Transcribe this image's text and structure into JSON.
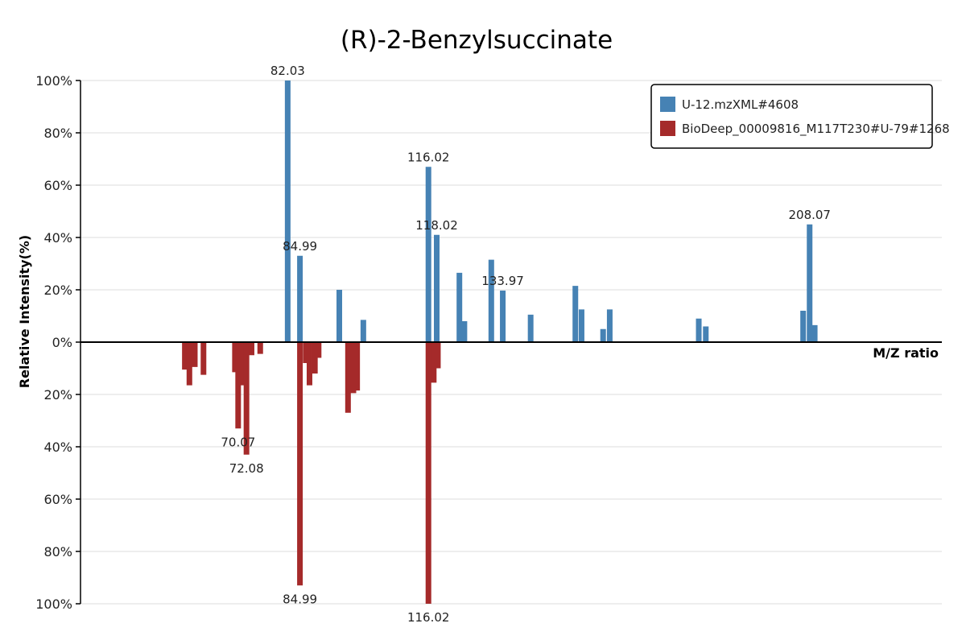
{
  "chart_data": {
    "type": "bar",
    "title": "(R)-2-Benzylsuccinate",
    "xlabel": "M/Z ratio",
    "ylabel": "Relative Intensity(%)",
    "xlim": [
      32,
      240
    ],
    "ylim": [
      -100,
      100
    ],
    "y_ticks": [
      "100%",
      "80%",
      "60%",
      "40%",
      "20%",
      "0%",
      "20%",
      "40%",
      "60%",
      "80%",
      "100%"
    ],
    "grid": true,
    "legend_position": "top-right",
    "series": [
      {
        "name": "U-12.mzXML#4608",
        "color": "#4682b4",
        "direction": "up",
        "peaks": [
          {
            "x": 82.03,
            "y": 100,
            "label": "82.03"
          },
          {
            "x": 84.99,
            "y": 33,
            "label": "84.99"
          },
          {
            "x": 94.5,
            "y": 20
          },
          {
            "x": 100.3,
            "y": 8.5
          },
          {
            "x": 116.02,
            "y": 67,
            "label": "116.02"
          },
          {
            "x": 118.02,
            "y": 41,
            "label": "118.02"
          },
          {
            "x": 123.5,
            "y": 26.5
          },
          {
            "x": 124.7,
            "y": 8
          },
          {
            "x": 131.2,
            "y": 31.5
          },
          {
            "x": 133.97,
            "y": 19.7,
            "label": "133.97"
          },
          {
            "x": 140.7,
            "y": 10.5
          },
          {
            "x": 151.5,
            "y": 21.5
          },
          {
            "x": 153.0,
            "y": 12.5
          },
          {
            "x": 158.2,
            "y": 5
          },
          {
            "x": 159.8,
            "y": 12.5
          },
          {
            "x": 181.3,
            "y": 9
          },
          {
            "x": 183.0,
            "y": 6
          },
          {
            "x": 206.5,
            "y": 12
          },
          {
            "x": 208.07,
            "y": 45,
            "label": "208.07"
          },
          {
            "x": 209.3,
            "y": 6.5
          }
        ]
      },
      {
        "name": "BioDeep_00009816_M117T230#U-79#1268",
        "color": "#a52a2a",
        "direction": "down",
        "peaks": [
          {
            "x": 57.2,
            "y": 10.5
          },
          {
            "x": 58.3,
            "y": 16.5
          },
          {
            "x": 59.6,
            "y": 9.5
          },
          {
            "x": 61.7,
            "y": 12.5
          },
          {
            "x": 69.3,
            "y": 11.5
          },
          {
            "x": 70.07,
            "y": 33,
            "label": "70.07"
          },
          {
            "x": 71.0,
            "y": 16.5
          },
          {
            "x": 72.08,
            "y": 43,
            "label": "72.08"
          },
          {
            "x": 73.3,
            "y": 5
          },
          {
            "x": 75.4,
            "y": 4.5
          },
          {
            "x": 84.99,
            "y": 93,
            "label": "84.99"
          },
          {
            "x": 86.4,
            "y": 8
          },
          {
            "x": 87.3,
            "y": 16.5
          },
          {
            "x": 88.6,
            "y": 12
          },
          {
            "x": 89.5,
            "y": 6
          },
          {
            "x": 96.6,
            "y": 27
          },
          {
            "x": 97.9,
            "y": 19.5
          },
          {
            "x": 98.8,
            "y": 18.5
          },
          {
            "x": 116.02,
            "y": 100,
            "label": "116.02"
          },
          {
            "x": 117.3,
            "y": 15.5
          },
          {
            "x": 118.3,
            "y": 10
          }
        ]
      }
    ]
  }
}
